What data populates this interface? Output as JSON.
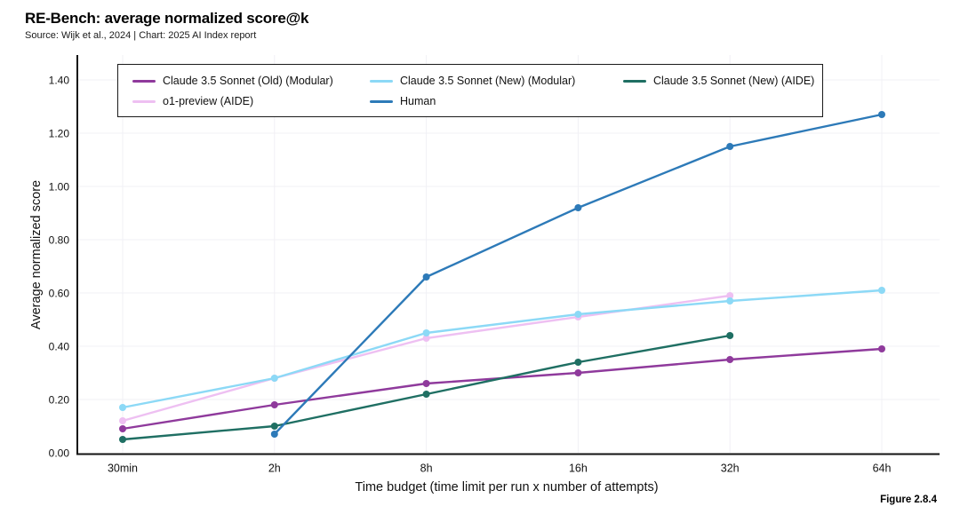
{
  "header": {
    "title": "RE-Bench: average normalized score@k",
    "subtitle": "Source: Wijk et al., 2024 | Chart: 2025 AI Index report"
  },
  "footer": {
    "figure_label": "Figure 2.8.4"
  },
  "chart_data": {
    "type": "line",
    "title": "RE-Bench: average normalized score@k",
    "xlabel": "Time budget (time limit per run x number of attempts)",
    "ylabel": "Average normalized score",
    "categories": [
      "30min",
      "2h",
      "8h",
      "16h",
      "32h",
      "64h"
    ],
    "yticks": [
      "0.00",
      "0.20",
      "0.40",
      "0.60",
      "0.80",
      "1.00",
      "1.20",
      "1.40"
    ],
    "ylim": [
      0,
      1.4
    ],
    "grid": true,
    "legend_position": "top",
    "colors": {
      "grid": "#f1f0f5",
      "axis": "#111111",
      "text": "#111111"
    },
    "series": [
      {
        "name": "Claude 3.5 Sonnet (Old) (Modular)",
        "color": "#8f3a9c",
        "values": [
          0.09,
          0.18,
          0.26,
          0.3,
          0.35,
          0.39
        ]
      },
      {
        "name": "Claude 3.5 Sonnet (New) (Modular)",
        "color": "#8cd9f6",
        "values": [
          0.17,
          0.28,
          0.45,
          0.52,
          0.57,
          0.61
        ]
      },
      {
        "name": "Claude 3.5 Sonnet (New) (AIDE)",
        "color": "#1f6f63",
        "values": [
          0.05,
          0.1,
          0.22,
          0.34,
          0.44,
          null
        ]
      },
      {
        "name": "o1-preview (AIDE)",
        "color": "#eec0f2",
        "values": [
          0.12,
          0.28,
          0.43,
          0.51,
          0.59,
          null
        ]
      },
      {
        "name": "Human",
        "color": "#2d7ab8",
        "values": [
          null,
          0.07,
          0.66,
          0.92,
          1.15,
          1.27
        ]
      }
    ]
  }
}
